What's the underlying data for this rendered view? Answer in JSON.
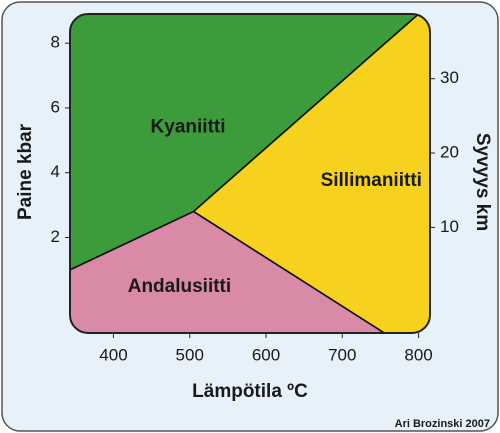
{
  "chart_data": {
    "type": "phase",
    "x_label": "Lämpötila ºC",
    "y_label": "Paine kbar",
    "y2_label": "Syvyys km",
    "credit": "Ari Brozinski 2007",
    "xlim": [
      343,
      815
    ],
    "xticks": [
      400,
      500,
      600,
      700,
      800
    ],
    "ylim": [
      -0.95,
      8.9
    ],
    "yticks": [
      2,
      4,
      6,
      8
    ],
    "y2lim": [
      -4.2,
      38.7
    ],
    "y2ticks": [
      10,
      20,
      30
    ],
    "regions": [
      {
        "name": "Kyaniitti",
        "color": "#3c9b3a",
        "x": [
          343,
          800,
          505,
          343
        ],
        "y": [
          8.9,
          8.9,
          2.8,
          1.0
        ]
      },
      {
        "name": "Sillimaniitti",
        "color": "#f6d21e",
        "x": [
          800,
          815,
          815,
          755,
          505
        ],
        "y": [
          8.9,
          8.9,
          -0.95,
          -0.95,
          2.8
        ]
      },
      {
        "name": "Andalusiitti",
        "color": "#d88aa6",
        "x": [
          343,
          505,
          755,
          343
        ],
        "y": [
          1.0,
          2.8,
          -0.95,
          -0.95
        ]
      }
    ]
  }
}
